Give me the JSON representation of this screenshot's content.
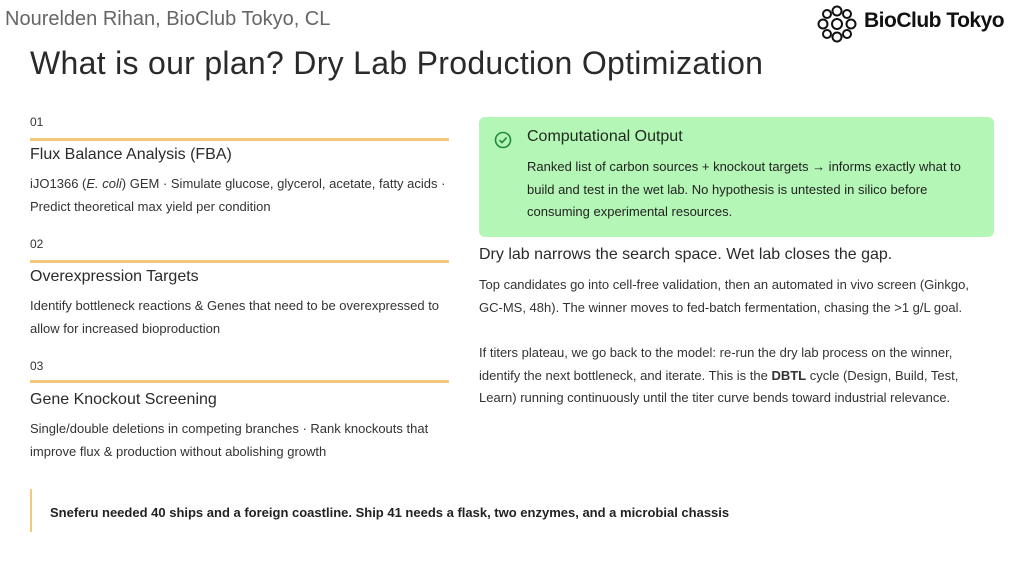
{
  "header": {
    "presenter": "Nourelden Rihan, BioClub Tokyo, CL",
    "logo": "BioClub Tokyo"
  },
  "title": "What is our plan? Dry Lab Production Optimization",
  "steps": [
    {
      "number": "01",
      "heading": "Flux Balance Analysis (FBA)",
      "description": [
        "iJO1366 (",
        "E. coli",
        ") GEM · Simulate glucose, glycerol, acetate, fatty acids · Predict theoretical max yield per condition"
      ]
    },
    {
      "number": "02",
      "heading": "Overexpression Targets",
      "description": [
        "Identify bottleneck reactions & Genes that need to be overexpressed to allow for increased bioproduction"
      ]
    },
    {
      "number": "03",
      "heading": "Gene Knockout Screening",
      "description": [
        "Single/double deletions in competing branches · Rank knockouts that improve flux & production without abolishing growth"
      ]
    }
  ],
  "output_box": {
    "title": "Computational Output",
    "text": "Ranked list of carbon sources + knockout targets → informs exactly what to build and test in the wet lab. No hypothesis is untested in silico before consuming experimental resources."
  },
  "summary": {
    "heading": "Dry lab narrows the search space. Wet lab closes the gap.",
    "paragraphs": [
      [
        "Top candidates go into cell-free validation, then an automated in vivo screen (Ginkgo, GC-MS, 48h). The winner moves to fed-batch fermentation, chasing the >1 g/L goal."
      ],
      [
        "If titers plateau, we go back to the model: re-run the dry lab process on the winner, identify the next bottleneck, and iterate. This is the ",
        "DBTL",
        " cycle (Design, Build, Test, Learn) running continuously until the titer curve bends toward industrial relevance."
      ]
    ]
  },
  "quote": "Sneferu needed 40 ships and a foreign coastline. Ship 41 needs a flask, two enzymes, and a microbial chassis"
}
